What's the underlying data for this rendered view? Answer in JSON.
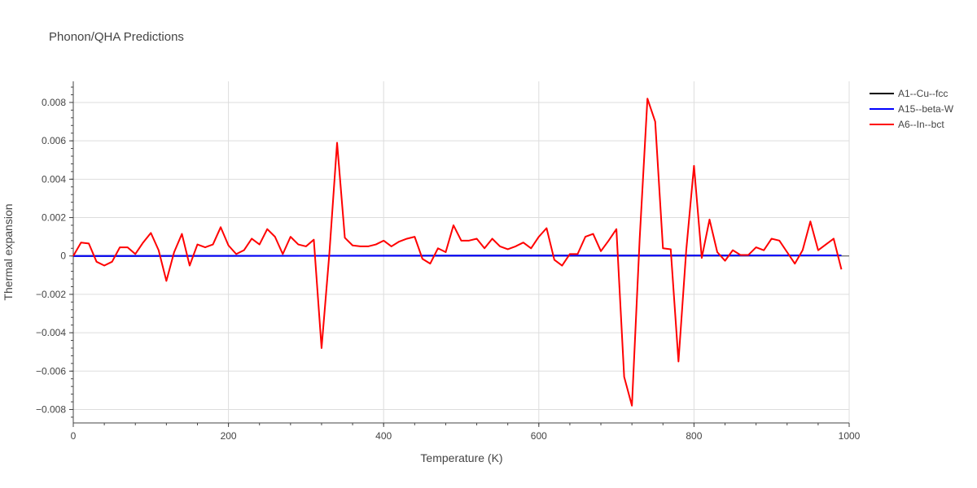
{
  "chart_data": {
    "type": "line",
    "title": "Phonon/QHA Predictions",
    "xlabel": "Temperature (K)",
    "ylabel": "Thermal expansion",
    "xlim": [
      0,
      1000
    ],
    "ylim": [
      -0.0087,
      0.0091
    ],
    "xticks": [
      0,
      200,
      400,
      600,
      800,
      1000
    ],
    "xtick_labels": [
      "0",
      "200",
      "400",
      "600",
      "800",
      "1000"
    ],
    "yticks": [
      -0.008,
      -0.006,
      -0.004,
      -0.002,
      0,
      0.002,
      0.004,
      0.006,
      0.008
    ],
    "ytick_labels": [
      "−0.008",
      "−0.006",
      "−0.004",
      "−0.002",
      "0",
      "0.002",
      "0.004",
      "0.006",
      "0.008"
    ],
    "grid": true,
    "legend_position": "top-right",
    "series": [
      {
        "name": "A1--Cu--fcc",
        "color": "#000000",
        "x": [
          0,
          990
        ],
        "y": [
          0,
          3e-05
        ]
      },
      {
        "name": "A15--beta-W",
        "color": "#0000ff",
        "x": [
          0,
          990
        ],
        "y": [
          0,
          3e-05
        ]
      },
      {
        "name": "A6--In--bct",
        "color": "#ff0000",
        "x": [
          0,
          10,
          20,
          30,
          40,
          50,
          60,
          70,
          80,
          90,
          100,
          110,
          120,
          130,
          140,
          150,
          160,
          170,
          180,
          190,
          200,
          210,
          220,
          230,
          240,
          250,
          260,
          270,
          280,
          290,
          300,
          310,
          320,
          330,
          340,
          350,
          360,
          370,
          380,
          390,
          400,
          410,
          420,
          430,
          440,
          450,
          460,
          470,
          480,
          490,
          500,
          510,
          520,
          530,
          540,
          550,
          560,
          570,
          580,
          590,
          600,
          610,
          620,
          630,
          640,
          650,
          660,
          670,
          680,
          690,
          700,
          710,
          720,
          730,
          740,
          750,
          760,
          770,
          780,
          790,
          800,
          810,
          820,
          830,
          840,
          850,
          860,
          870,
          880,
          890,
          900,
          910,
          920,
          930,
          940,
          950,
          960,
          970,
          980,
          990
        ],
        "y": [
          0,
          0.0007,
          0.00065,
          -0.0003,
          -0.0005,
          -0.0003,
          0.00045,
          0.00045,
          0.0001,
          0.0007,
          0.0012,
          0.0003,
          -0.0013,
          0.0002,
          0.00115,
          -0.0005,
          0.0006,
          0.00045,
          0.0006,
          0.0015,
          0.00055,
          0.0001,
          0.0003,
          0.0009,
          0.0006,
          0.0014,
          0.001,
          0.0001,
          0.001,
          0.0006,
          0.0005,
          0.00085,
          -0.0048,
          0.0001,
          0.0059,
          0.00095,
          0.00055,
          0.0005,
          0.0005,
          0.0006,
          0.0008,
          0.0005,
          0.00075,
          0.0009,
          0.001,
          -0.00015,
          -0.0004,
          0.0004,
          0.0002,
          0.0016,
          0.0008,
          0.0008,
          0.0009,
          0.0004,
          0.0009,
          0.0005,
          0.00035,
          0.0005,
          0.0007,
          0.0004,
          0.001,
          0.00145,
          -0.0002,
          -0.0005,
          0.0001,
          0.0001,
          0.001,
          0.00115,
          0.00025,
          0.0008,
          0.0014,
          -0.0063,
          -0.0078,
          0.0009,
          0.0082,
          0.007,
          0.0004,
          0.00035,
          -0.0055,
          0.0003,
          0.0047,
          -0.0001,
          0.0019,
          0.0002,
          -0.00025,
          0.0003,
          5e-05,
          5e-05,
          0.00045,
          0.0003,
          0.0009,
          0.0008,
          0.0002,
          -0.0004,
          0.0003,
          0.0018,
          0.0003,
          0.0006,
          0.0009,
          -0.0007
        ]
      }
    ]
  }
}
